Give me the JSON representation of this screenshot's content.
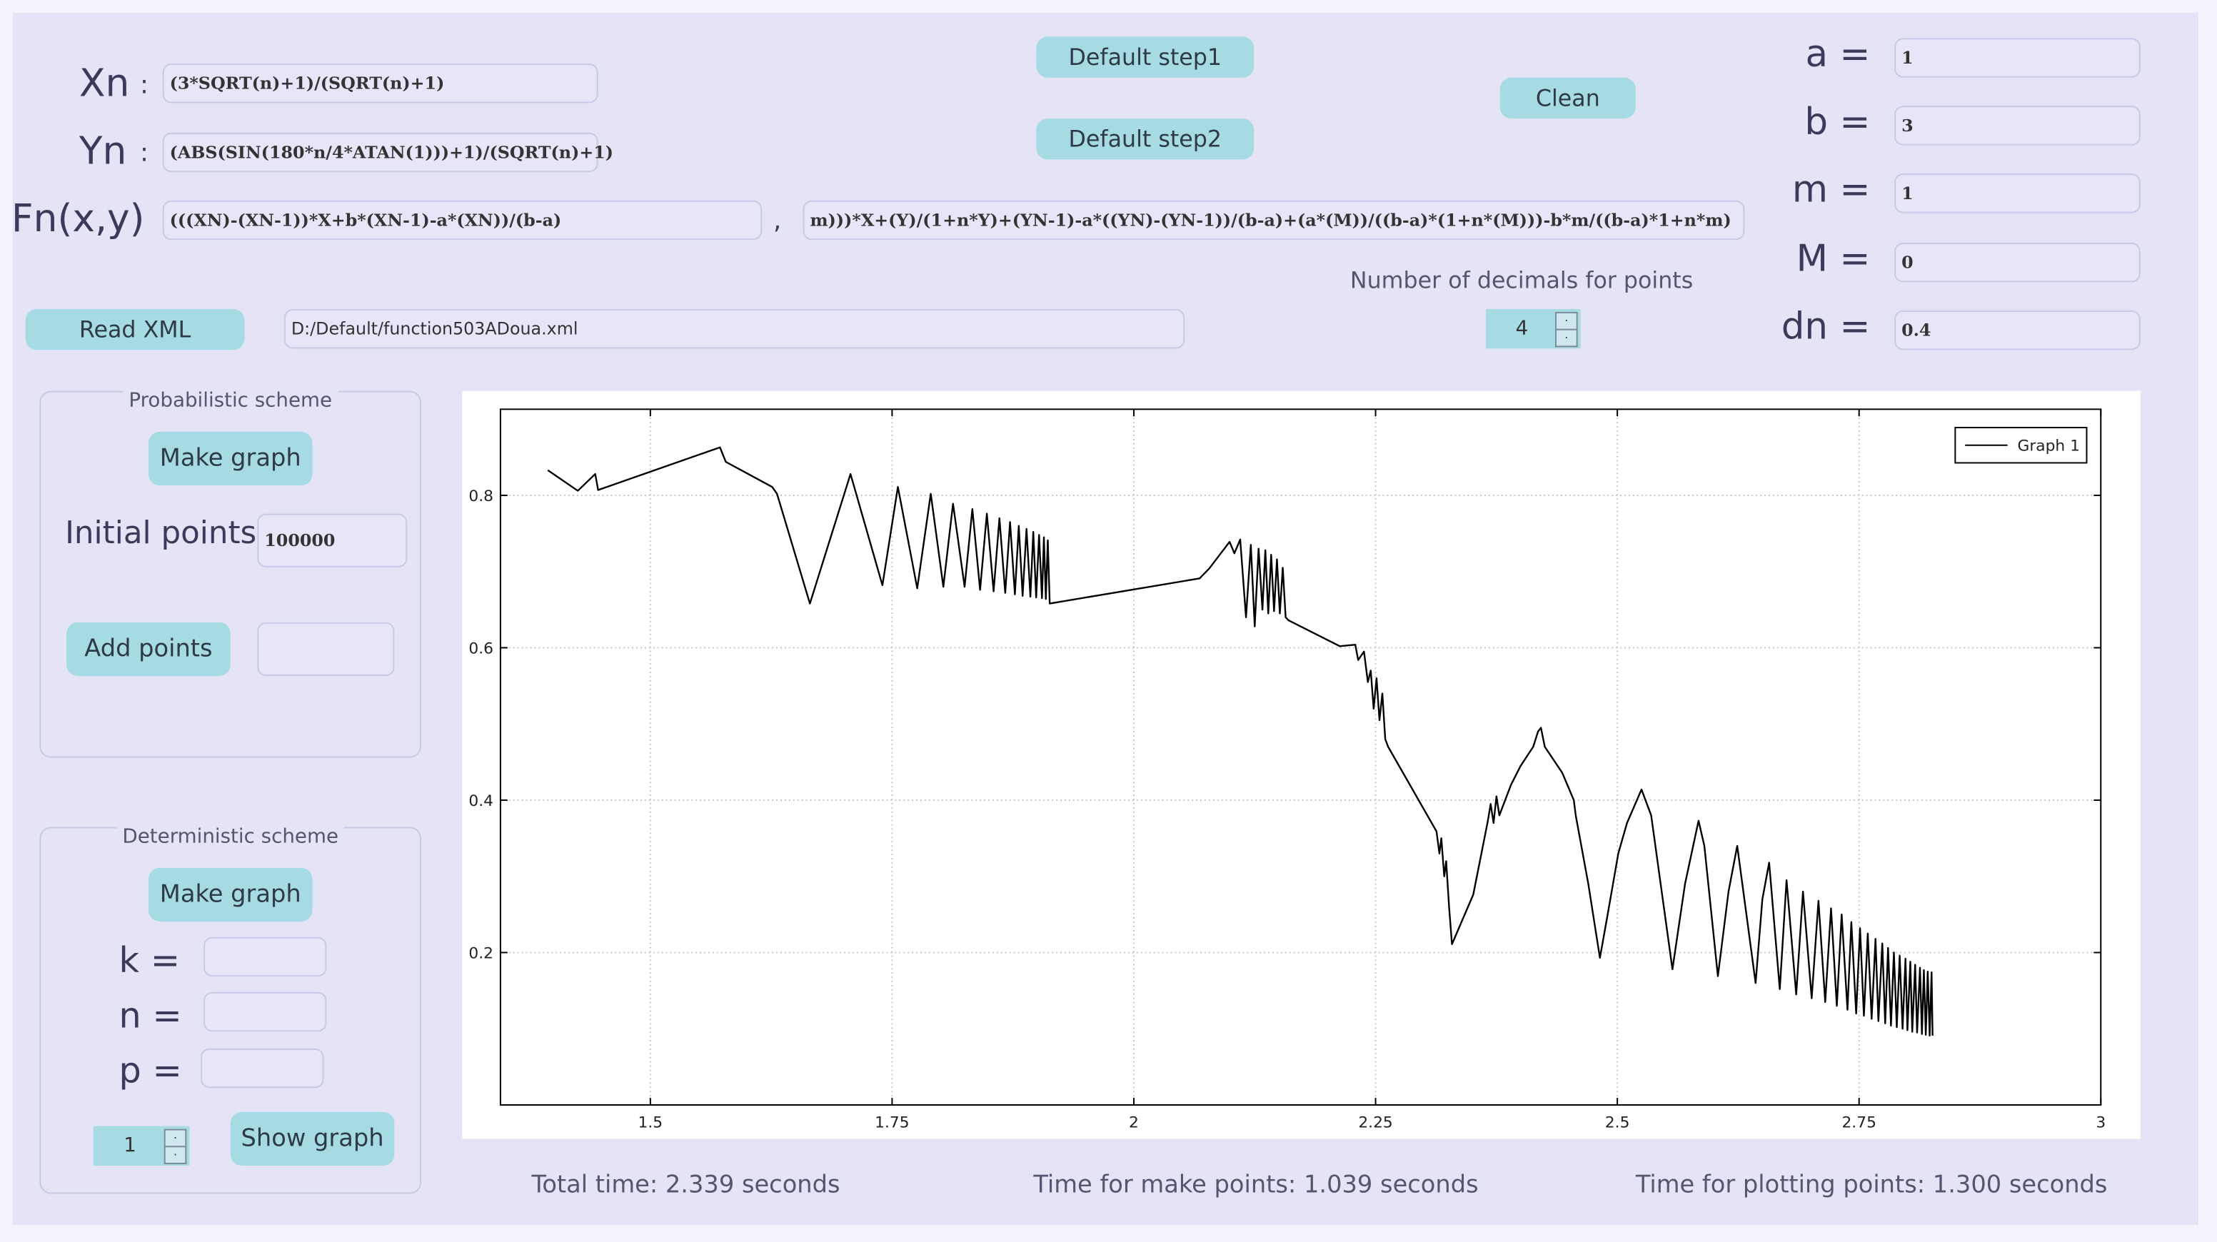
{
  "formula": {
    "xn_label": "Xn",
    "separator": ":",
    "xn": "(3*SQRT(n)+1)/(SQRT(n)+1)",
    "yn_label": "Yn",
    "yn": "(ABS(SIN(180*n/4*ATAN(1)))+1)/(SQRT(n)+1)",
    "fn_label": "Fn(x,y)",
    "fn_part1": "(((XN)-(XN-1))*X+b*(XN-1)-a*(XN))/(b-a)",
    "fn_comma": ",",
    "fn_part2": "m)))*X+(Y)/(1+n*Y)+(YN-1)-a*((YN)-(YN-1))/(b-a)+(a*(M))/((b-a)*(1+n*(M)))-b*m/((b-a)*1+n*m)"
  },
  "buttons": {
    "default_step1": "Default step1",
    "default_step2": "Default step2",
    "clean": "Clean",
    "read_xml": "Read XML"
  },
  "xml_path": "D:/Default/function503ADoua.xml",
  "decimals": {
    "label": "Number of decimals for points",
    "value": "4"
  },
  "parameters": [
    {
      "label": "a =",
      "value": "1"
    },
    {
      "label": "b =",
      "value": "3"
    },
    {
      "label": "m =",
      "value": "1"
    },
    {
      "label": "M =",
      "value": "0"
    },
    {
      "label": "dn =",
      "value": "0.4"
    }
  ],
  "probabilistic": {
    "title": "Probabilistic scheme",
    "make_graph": "Make graph",
    "initial_label": "Initial points:",
    "initial_value": "100000",
    "add_points": "Add points"
  },
  "deterministic": {
    "title": "Deterministic scheme",
    "make_graph": "Make graph",
    "params": [
      "k =",
      "n =",
      "p ="
    ],
    "spin_value": "1",
    "show_graph": "Show graph"
  },
  "status": {
    "total": "Total time: 2.339 seconds",
    "make": "Time for make points: 1.039 seconds",
    "plot": "Time for plotting points: 1.300 seconds"
  },
  "chart_data": {
    "type": "line",
    "xlim": [
      1.345,
      3.0
    ],
    "ylim": [
      0,
      0.913
    ],
    "xticks": [
      1.5,
      1.75,
      2,
      2.25,
      2.5,
      2.75,
      3
    ],
    "yticks": [
      0.2,
      0.4,
      0.6,
      0.8
    ],
    "grid": true,
    "legend": "upper right",
    "x": [
      1.394,
      1.425,
      1.443,
      1.446,
      1.572,
      1.578,
      1.626,
      1.631,
      1.665,
      1.707,
      1.74,
      1.756,
      1.776,
      1.79,
      1.803,
      1.813,
      1.825,
      1.833,
      1.841,
      1.848,
      1.855,
      1.861,
      1.867,
      1.872,
      1.877,
      1.881,
      1.885,
      1.889,
      1.893,
      1.896,
      1.899,
      1.902,
      1.905,
      1.907,
      1.909,
      1.911,
      1.913,
      2.068,
      2.078,
      2.099,
      2.104,
      2.11,
      2.116,
      2.121,
      2.125,
      2.129,
      2.133,
      2.136,
      2.139,
      2.142,
      2.145,
      2.148,
      2.151,
      2.154,
      2.157,
      2.16,
      2.213,
      2.229,
      2.232,
      2.238,
      2.242,
      2.245,
      2.248,
      2.251,
      2.254,
      2.257,
      2.26,
      2.263,
      2.313,
      2.316,
      2.318,
      2.321,
      2.323,
      2.326,
      2.329,
      2.351,
      2.366,
      2.369,
      2.372,
      2.375,
      2.378,
      2.39,
      2.4,
      2.413,
      2.418,
      2.421,
      2.425,
      2.443,
      2.455,
      2.457,
      2.47,
      2.482,
      2.49,
      2.501,
      2.51,
      2.525,
      2.535,
      2.557,
      2.57,
      2.584,
      2.59,
      2.604,
      2.615,
      2.624,
      2.643,
      2.65,
      2.657,
      2.668,
      2.675,
      2.685,
      2.692,
      2.701,
      2.708,
      2.715,
      2.721,
      2.727,
      2.732,
      2.738,
      2.742,
      2.747,
      2.751,
      2.755,
      2.759,
      2.763,
      2.767,
      2.77,
      2.774,
      2.777,
      2.78,
      2.783,
      2.786,
      2.789,
      2.792,
      2.795,
      2.798,
      2.8,
      2.803,
      2.805,
      2.808,
      2.81,
      2.813,
      2.815,
      2.817,
      2.819,
      2.821,
      2.823,
      2.825,
      2.826
    ],
    "series": [
      {
        "name": "Graph 1",
        "color": "#000000",
        "values": [
          0.833,
          0.806,
          0.828,
          0.807,
          0.863,
          0.844,
          0.811,
          0.802,
          0.658,
          0.828,
          0.682,
          0.811,
          0.678,
          0.802,
          0.68,
          0.789,
          0.68,
          0.782,
          0.676,
          0.776,
          0.674,
          0.77,
          0.672,
          0.765,
          0.67,
          0.76,
          0.668,
          0.756,
          0.667,
          0.752,
          0.666,
          0.748,
          0.665,
          0.745,
          0.664,
          0.741,
          0.658,
          0.691,
          0.704,
          0.739,
          0.724,
          0.742,
          0.64,
          0.735,
          0.628,
          0.73,
          0.65,
          0.728,
          0.645,
          0.722,
          0.648,
          0.716,
          0.645,
          0.705,
          0.64,
          0.636,
          0.602,
          0.604,
          0.584,
          0.595,
          0.555,
          0.57,
          0.52,
          0.56,
          0.505,
          0.54,
          0.48,
          0.47,
          0.359,
          0.33,
          0.35,
          0.3,
          0.32,
          0.26,
          0.211,
          0.276,
          0.372,
          0.395,
          0.37,
          0.405,
          0.38,
          0.42,
          0.445,
          0.47,
          0.49,
          0.495,
          0.47,
          0.436,
          0.4,
          0.38,
          0.29,
          0.193,
          0.25,
          0.33,
          0.37,
          0.414,
          0.38,
          0.178,
          0.29,
          0.373,
          0.34,
          0.169,
          0.28,
          0.34,
          0.16,
          0.27,
          0.318,
          0.152,
          0.295,
          0.145,
          0.28,
          0.14,
          0.268,
          0.135,
          0.258,
          0.13,
          0.25,
          0.125,
          0.24,
          0.12,
          0.232,
          0.117,
          0.225,
          0.113,
          0.218,
          0.11,
          0.212,
          0.107,
          0.206,
          0.104,
          0.2,
          0.102,
          0.196,
          0.1,
          0.192,
          0.098,
          0.188,
          0.096,
          0.184,
          0.095,
          0.18,
          0.093,
          0.177,
          0.092,
          0.175,
          0.091,
          0.174,
          0.091
        ]
      }
    ]
  }
}
